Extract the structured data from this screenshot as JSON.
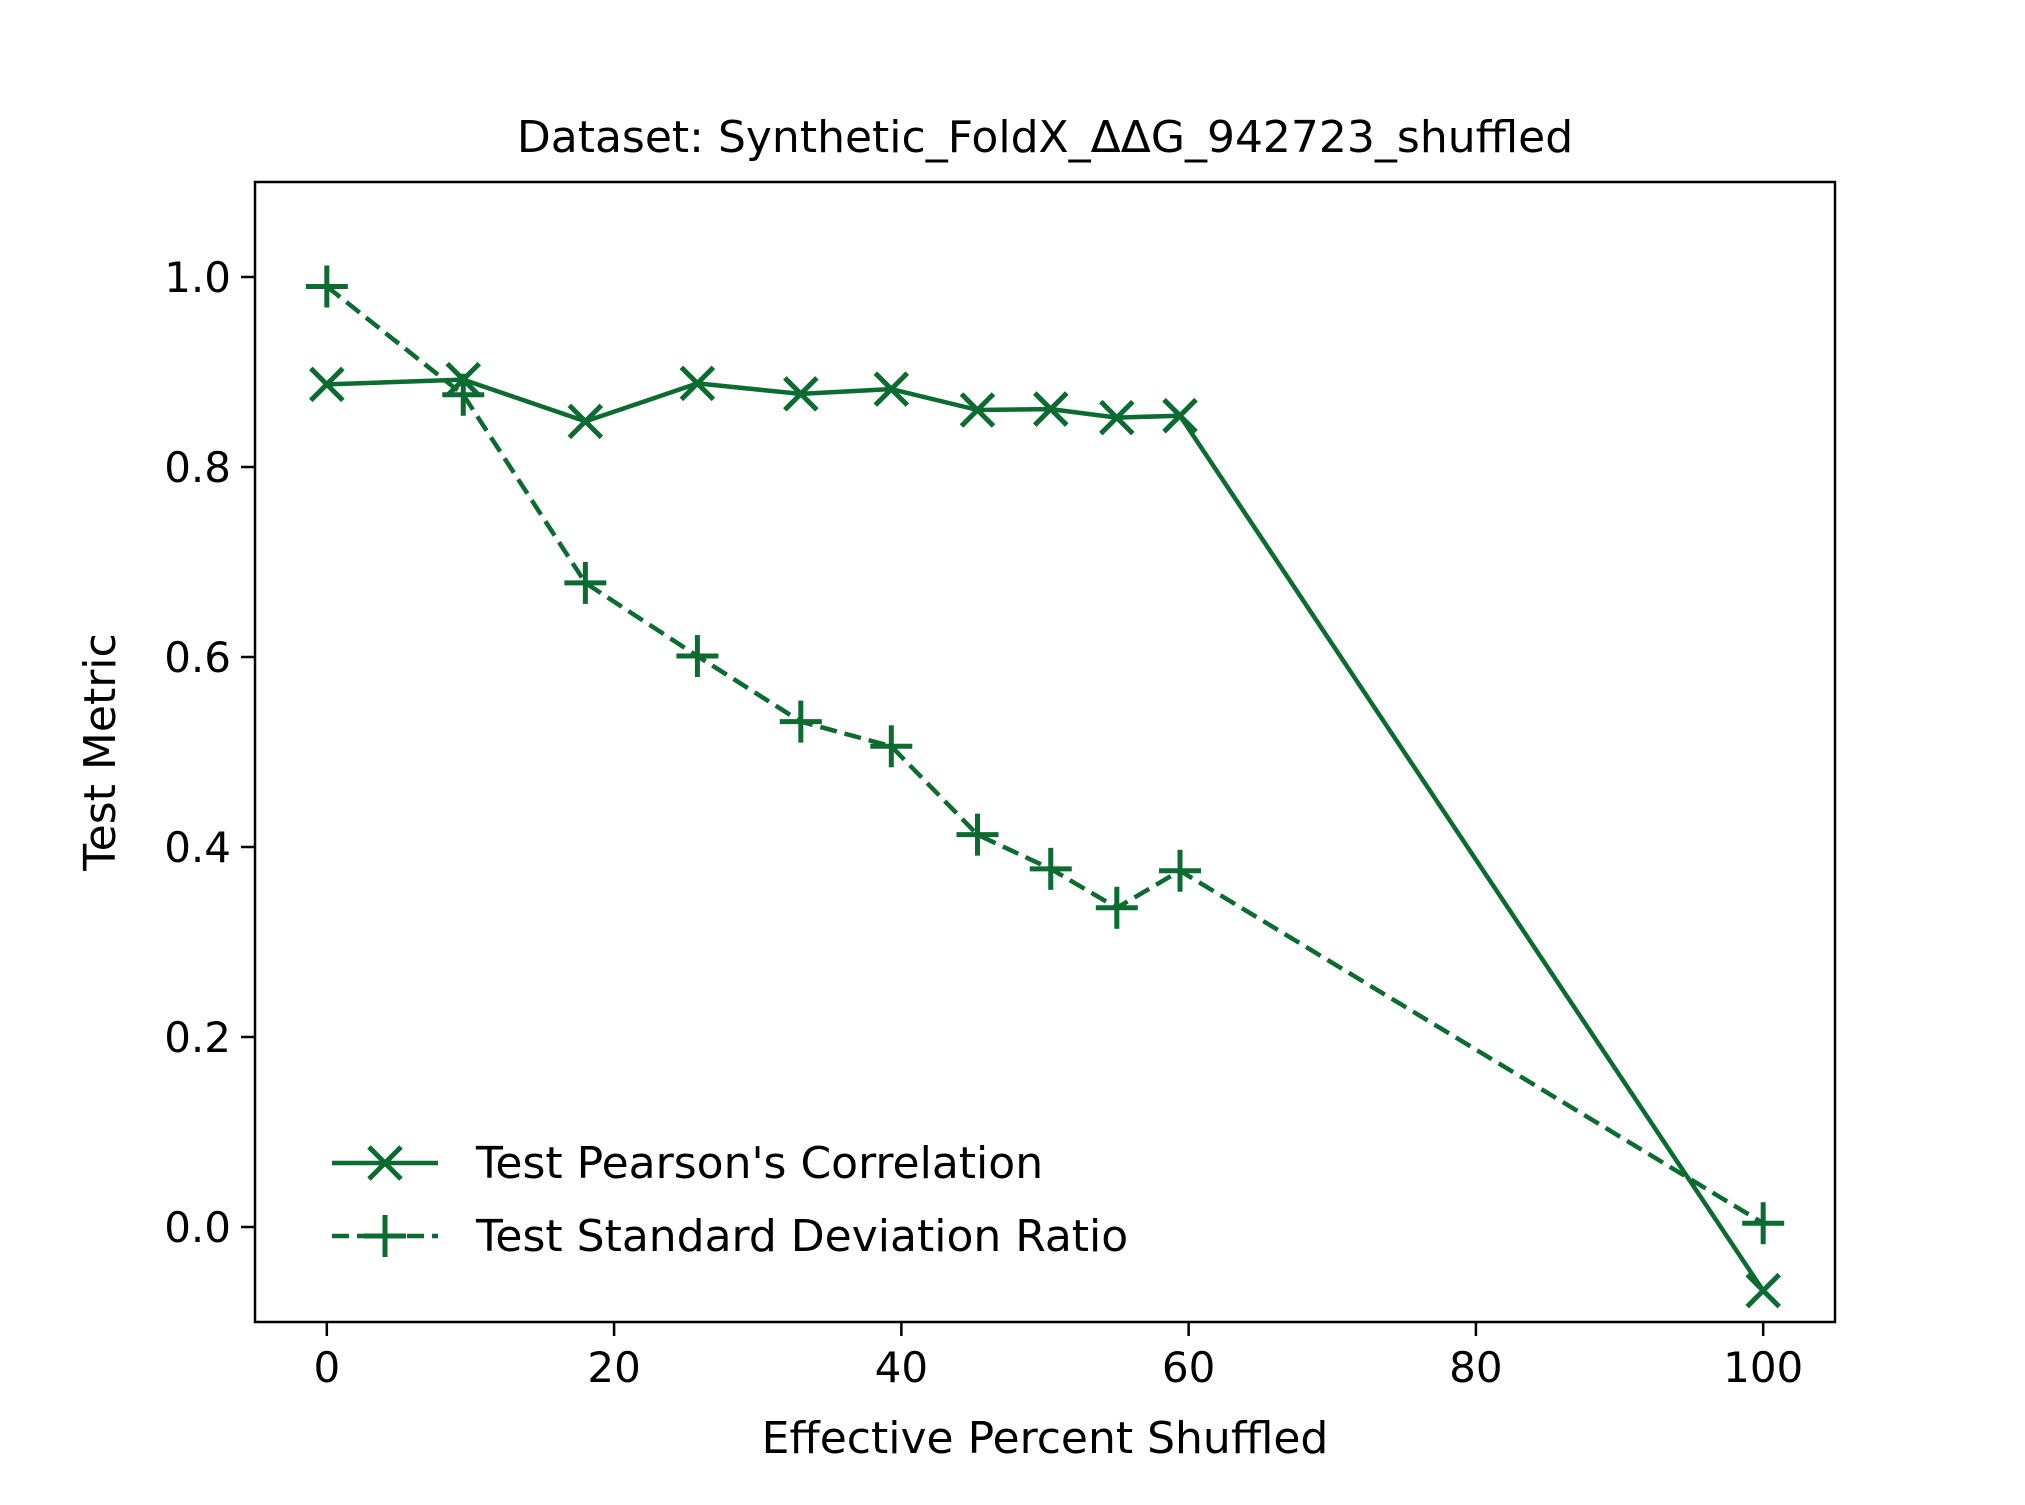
{
  "chart_data": {
    "type": "line",
    "title": "Dataset: Synthetic_FoldX_ΔΔG_942723_shuffled",
    "xlabel": "Effective Percent Shuffled",
    "ylabel": "Test Metric",
    "xlim": [
      -5,
      105
    ],
    "ylim": [
      -0.1,
      1.1
    ],
    "xticks": [
      0,
      20,
      40,
      60,
      80,
      100
    ],
    "xtick_labels": [
      "0",
      "20",
      "40",
      "60",
      "80",
      "100"
    ],
    "yticks": [
      0.0,
      0.2,
      0.4,
      0.6,
      0.8,
      1.0
    ],
    "ytick_labels": [
      "0.0",
      "0.2",
      "0.4",
      "0.6",
      "0.8",
      "1.0"
    ],
    "grid": false,
    "legend_position": "lower-left",
    "color": "#0b6b30",
    "series": [
      {
        "name": "Test Pearson's Correlation",
        "marker": "x",
        "linestyle": "solid",
        "x": [
          0,
          9.5,
          18,
          25.8,
          33,
          39.3,
          45.3,
          50.4,
          55,
          59.4,
          100
        ],
        "y": [
          0.887,
          0.892,
          0.848,
          0.888,
          0.877,
          0.882,
          0.86,
          0.861,
          0.852,
          0.854,
          -0.067
        ]
      },
      {
        "name": "Test Standard Deviation Ratio",
        "marker": "+",
        "linestyle": "dashed",
        "x": [
          0,
          9.5,
          18,
          25.8,
          33,
          39.3,
          45.3,
          50.4,
          55,
          59.4,
          100
        ],
        "y": [
          0.99,
          0.876,
          0.678,
          0.601,
          0.532,
          0.506,
          0.413,
          0.377,
          0.336,
          0.375,
          0.004
        ]
      }
    ]
  }
}
